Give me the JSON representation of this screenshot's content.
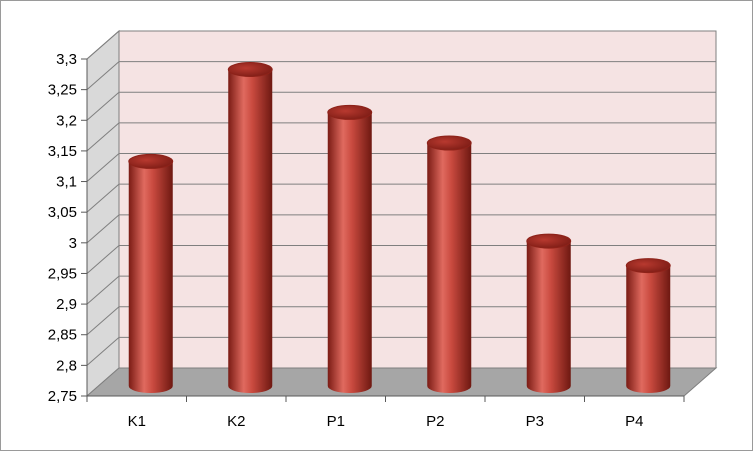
{
  "chart_data": {
    "type": "bar",
    "style": "3d-cylinder",
    "categories": [
      "K1",
      "K2",
      "P1",
      "P2",
      "P3",
      "P4"
    ],
    "values": [
      3.11,
      3.26,
      3.19,
      3.14,
      2.98,
      2.94
    ],
    "ylim": [
      2.75,
      3.3
    ],
    "ytick_step": 0.05,
    "ytick_labels": [
      "2,75",
      "2,8",
      "2,85",
      "2,9",
      "2,95",
      "3",
      "3,05",
      "3,1",
      "3,15",
      "3,2",
      "3,25",
      "3,3"
    ],
    "title": "",
    "xlabel": "",
    "ylabel": "",
    "grid": true,
    "legend": "none",
    "colors": {
      "bar": "#c0392b",
      "bar_dark": "#7a1b14",
      "bar_light": "#e06a5f",
      "wall": "#f5e3e3",
      "floor": "#a6a6a6",
      "side_wall": "#d9d9d9",
      "grid": "#7f7f7f"
    }
  }
}
